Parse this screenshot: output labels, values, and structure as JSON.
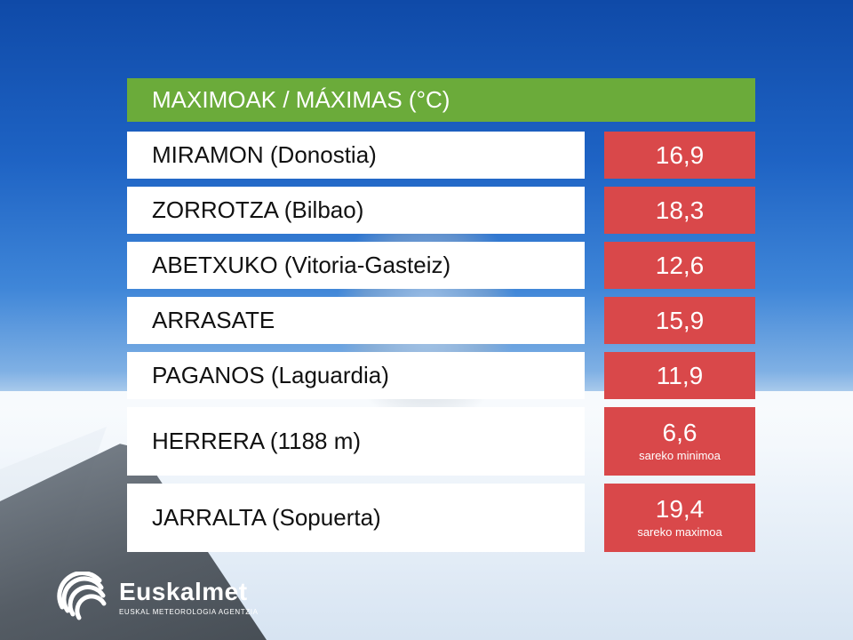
{
  "header": {
    "title": "MAXIMOAK / MÁXIMAS (°C)"
  },
  "colors": {
    "header_bg": "#6bab3a",
    "value_bg": "#d9484a",
    "row_bg": "#ffffff"
  },
  "stations": [
    {
      "name": "MIRAMON (Donostia)",
      "value": "16,9",
      "note": ""
    },
    {
      "name": "ZORROTZA (Bilbao)",
      "value": "18,3",
      "note": ""
    },
    {
      "name": "ABETXUKO (Vitoria-Gasteiz)",
      "value": "12,6",
      "note": ""
    },
    {
      "name": "ARRASATE",
      "value": "15,9",
      "note": ""
    },
    {
      "name": "PAGANOS (Laguardia)",
      "value": "11,9",
      "note": ""
    },
    {
      "name": "HERRERA (1188 m)",
      "value": "6,6",
      "note": "sareko minimoa"
    },
    {
      "name": "JARRALTA (Sopuerta)",
      "value": "19,4",
      "note": "sareko maximoa"
    }
  ],
  "logo": {
    "name": "Euskalmet",
    "subtitle": "EUSKAL METEOROLOGIA AGENTZIA",
    "icon": "euskalmet-logo-icon"
  }
}
